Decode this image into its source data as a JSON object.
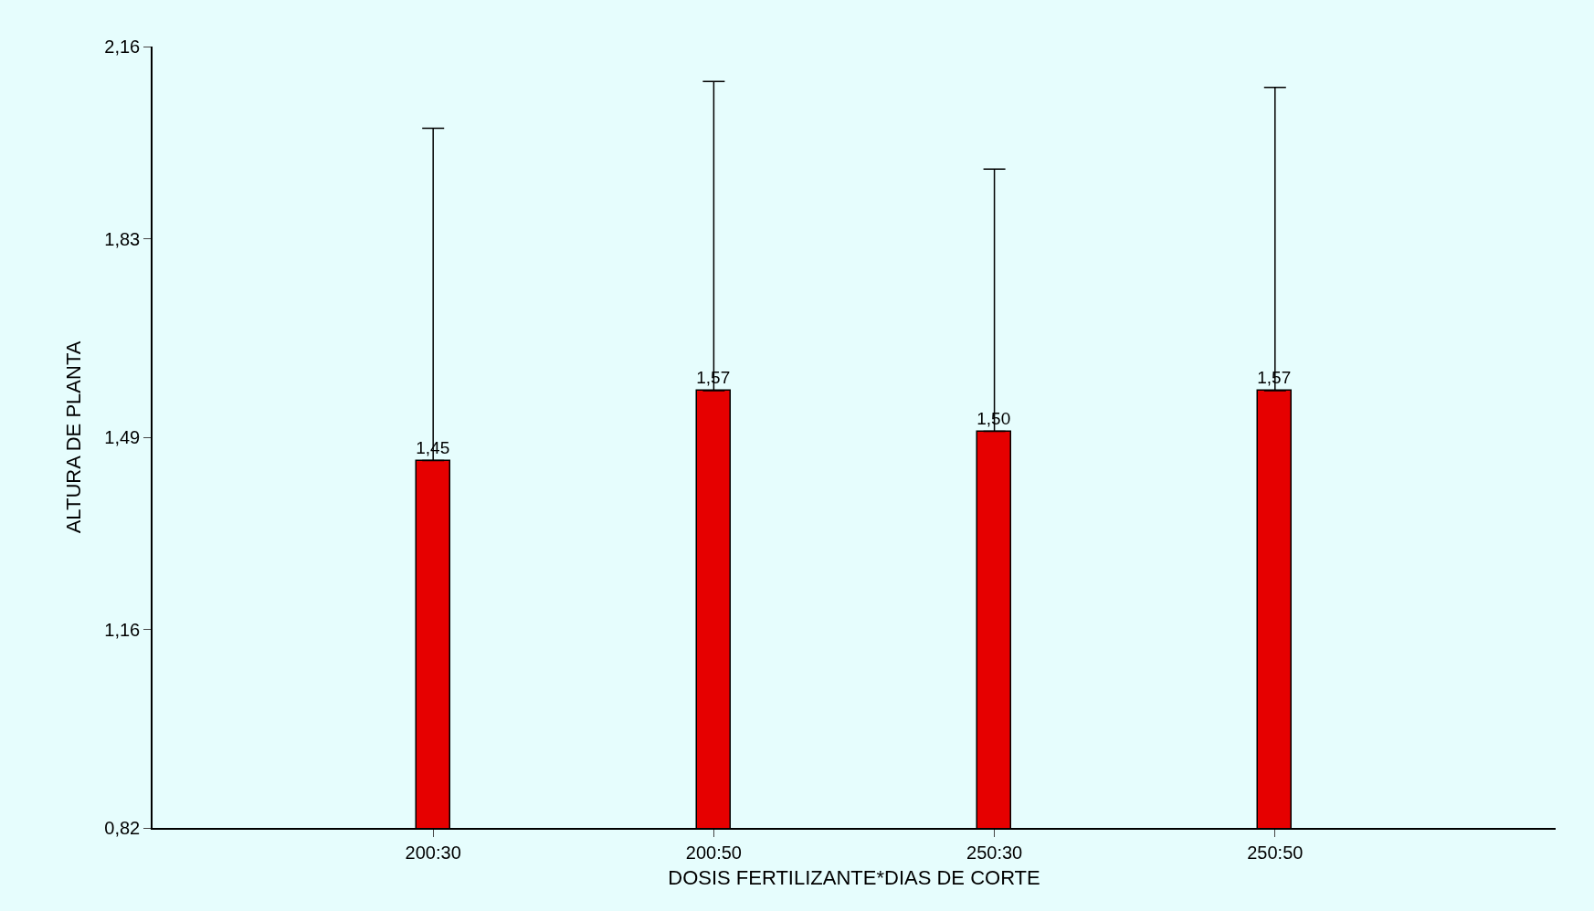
{
  "chart_data": {
    "type": "bar",
    "xlabel": "DOSIS FERTILIZANTE*DIAS DE CORTE",
    "ylabel": "ALTURA DE PLANTA",
    "categories": [
      "200:30",
      "200:50",
      "250:30",
      "250:50"
    ],
    "series": [
      {
        "color": "#e60000",
        "values": [
          1.45,
          1.57,
          1.5,
          1.57
        ],
        "value_labels": [
          "1,45",
          "1,57",
          "1,50",
          "1,57"
        ],
        "errors": [
          [
            1.45,
            2.02
          ],
          [
            1.57,
            2.1
          ],
          [
            1.5,
            1.95
          ],
          [
            1.57,
            2.09
          ]
        ]
      }
    ],
    "ylim": [
      0.82,
      2.16
    ],
    "yticks": [
      {
        "value": 0.82,
        "label": "0,82"
      },
      {
        "value": 1.16,
        "label": "1,16"
      },
      {
        "value": 1.49,
        "label": "1,49"
      },
      {
        "value": 1.83,
        "label": "1,83"
      },
      {
        "value": 2.16,
        "label": "2,16"
      }
    ],
    "grid": false,
    "legend": false
  }
}
